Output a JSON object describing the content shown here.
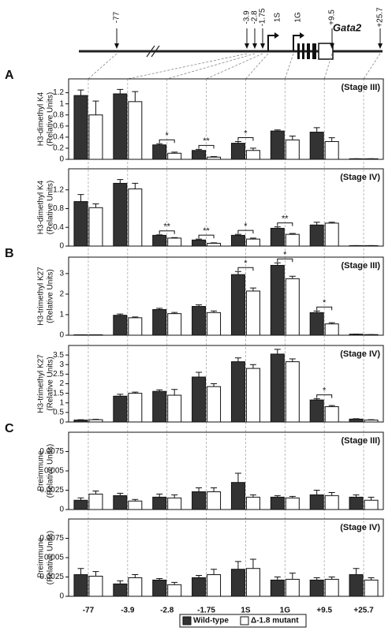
{
  "gene_diagram": {
    "sites": [
      "-77",
      "-3.9",
      "-2.8",
      "-1.75",
      "1S",
      "1G",
      "+9.5",
      "+25.7"
    ],
    "gene": "Gata2"
  },
  "chart_data": [
    {
      "type": "bar",
      "panel_label": "A",
      "stage": "(Stage III)",
      "ylabel": [
        "H3-dimethyl K4",
        "(Relative Units)"
      ],
      "categories": [
        null,
        null,
        null,
        null,
        null,
        null,
        null,
        null
      ],
      "ylim": [
        0,
        1.45
      ],
      "yticks": [
        0,
        0.2,
        0.4,
        0.6,
        0.8,
        1,
        1.2
      ],
      "series": [
        {
          "color": "#333333",
          "values": [
            1.15,
            1.18,
            0.26,
            0.16,
            0.29,
            0.51,
            0.49,
            0.01
          ],
          "errors": [
            0.1,
            0.08,
            0.02,
            0.02,
            0.03,
            0.02,
            0.08,
            0
          ]
        },
        {
          "color": "#ffffff",
          "values": [
            0.8,
            1.04,
            0.11,
            0.04,
            0.16,
            0.35,
            0.32,
            0.01
          ],
          "errors": [
            0.25,
            0.18,
            0.02,
            0.01,
            0.04,
            0.07,
            0.07,
            0
          ]
        }
      ],
      "significance": [
        null,
        null,
        "*",
        "**",
        "*",
        null,
        null,
        null
      ]
    },
    {
      "type": "bar",
      "stage": "(Stage IV)",
      "ylabel": [
        "H3-dimethyl K4",
        "(Relative Units)"
      ],
      "categories": [
        null,
        null,
        null,
        null,
        null,
        null,
        null,
        null
      ],
      "ylim": [
        0,
        1.65
      ],
      "yticks": [
        0,
        0.4,
        0.8,
        1.2
      ],
      "series": [
        {
          "color": "#333333",
          "values": [
            0.95,
            1.34,
            0.23,
            0.13,
            0.23,
            0.38,
            0.45,
            0.01
          ],
          "errors": [
            0.15,
            0.08,
            0.01,
            0.02,
            0.02,
            0.03,
            0.06,
            0
          ]
        },
        {
          "color": "#ffffff",
          "values": [
            0.82,
            1.22,
            0.17,
            0.06,
            0.15,
            0.25,
            0.49,
            0.01
          ],
          "errors": [
            0.08,
            0.12,
            0.01,
            0.01,
            0.02,
            0.02,
            0.02,
            0
          ]
        }
      ],
      "significance": [
        null,
        null,
        "**",
        "**",
        "*",
        "**",
        null,
        null
      ]
    },
    {
      "type": "bar",
      "panel_label": "B",
      "stage": "(Stage III)",
      "ylabel": [
        "H3-trimethyl K27",
        "(Relative Units)"
      ],
      "categories": [
        null,
        null,
        null,
        null,
        null,
        null,
        null,
        null
      ],
      "ylim": [
        0,
        3.8
      ],
      "yticks": [
        0,
        1,
        2,
        3
      ],
      "series": [
        {
          "color": "#333333",
          "values": [
            0.02,
            0.97,
            1.25,
            1.4,
            2.95,
            3.4,
            1.1,
            0.05
          ],
          "errors": [
            0,
            0.06,
            0.06,
            0.08,
            0.15,
            0.12,
            0.08,
            0
          ]
        },
        {
          "color": "#ffffff",
          "values": [
            0.02,
            0.85,
            1.05,
            1.1,
            2.15,
            2.75,
            0.55,
            0.03
          ],
          "errors": [
            0,
            0.04,
            0.06,
            0.08,
            0.15,
            0.12,
            0.06,
            0
          ]
        }
      ],
      "significance": [
        null,
        null,
        null,
        null,
        "*",
        "*",
        "*",
        null
      ]
    },
    {
      "type": "bar",
      "stage": "(Stage IV)",
      "ylabel": [
        "H3-trimethyl K27",
        "(Relative Units)"
      ],
      "categories": [
        null,
        null,
        null,
        null,
        null,
        null,
        null,
        null
      ],
      "ylim": [
        0,
        4
      ],
      "yticks": [
        0,
        0.5,
        1,
        1.5,
        2,
        2.5,
        3,
        3.5
      ],
      "series": [
        {
          "color": "#333333",
          "values": [
            0.1,
            1.35,
            1.6,
            2.35,
            3.15,
            3.55,
            1.15,
            0.15
          ],
          "errors": [
            0.02,
            0.1,
            0.08,
            0.25,
            0.2,
            0.25,
            0.06,
            0.02
          ]
        },
        {
          "color": "#ffffff",
          "values": [
            0.12,
            1.5,
            1.4,
            1.85,
            2.8,
            3.15,
            0.8,
            0.1
          ],
          "errors": [
            0.02,
            0.06,
            0.3,
            0.15,
            0.2,
            0.15,
            0.06,
            0.02
          ]
        }
      ],
      "significance": [
        null,
        null,
        null,
        null,
        null,
        null,
        "*",
        null
      ]
    },
    {
      "type": "bar",
      "panel_label": "C",
      "stage": "(Stage III)",
      "ylabel": [
        "Preimmune",
        "(Relative Units)"
      ],
      "categories": [
        null,
        null,
        null,
        null,
        null,
        null,
        null,
        null
      ],
      "ylim": [
        0,
        0.01
      ],
      "yticks": [
        0,
        0.0025,
        0.005,
        0.0075
      ],
      "series": [
        {
          "color": "#333333",
          "values": [
            0.0012,
            0.0018,
            0.0016,
            0.0023,
            0.0035,
            0.0016,
            0.0019,
            0.0016
          ],
          "errors": [
            0.0003,
            0.0003,
            0.0004,
            0.0005,
            0.0012,
            0.0002,
            0.0006,
            0.0003
          ]
        },
        {
          "color": "#ffffff",
          "values": [
            0.002,
            0.0011,
            0.0015,
            0.0023,
            0.0016,
            0.0015,
            0.0018,
            0.0012
          ],
          "errors": [
            0.0004,
            0.0002,
            0.0004,
            0.0005,
            0.0003,
            0.0002,
            0.0004,
            0.0004
          ]
        }
      ]
    },
    {
      "type": "bar",
      "stage": "(Stage IV)",
      "ylabel": [
        "Preimmune",
        "(Relative Units)"
      ],
      "categories": [
        "-77",
        "-3.9",
        "-2.8",
        "-1.75",
        "1S",
        "1G",
        "+9.5",
        "+25.7"
      ],
      "ylim": [
        0,
        0.01
      ],
      "yticks": [
        0,
        0.0025,
        0.005,
        0.0075
      ],
      "series": [
        {
          "name": "Wild-type",
          "color": "#333333",
          "values": [
            0.0028,
            0.0016,
            0.0021,
            0.0024,
            0.0035,
            0.0021,
            0.0021,
            0.0028
          ],
          "errors": [
            0.0008,
            0.0004,
            0.0002,
            0.0003,
            0.001,
            0.0004,
            0.0003,
            0.0008
          ]
        },
        {
          "name": "Δ-1.8 mutant",
          "color": "#ffffff",
          "values": [
            0.0026,
            0.0024,
            0.0015,
            0.0028,
            0.0036,
            0.0022,
            0.0022,
            0.0021
          ],
          "errors": [
            0.0006,
            0.0004,
            0.0003,
            0.0007,
            0.0012,
            0.0008,
            0.0003,
            0.0003
          ]
        }
      ]
    }
  ]
}
